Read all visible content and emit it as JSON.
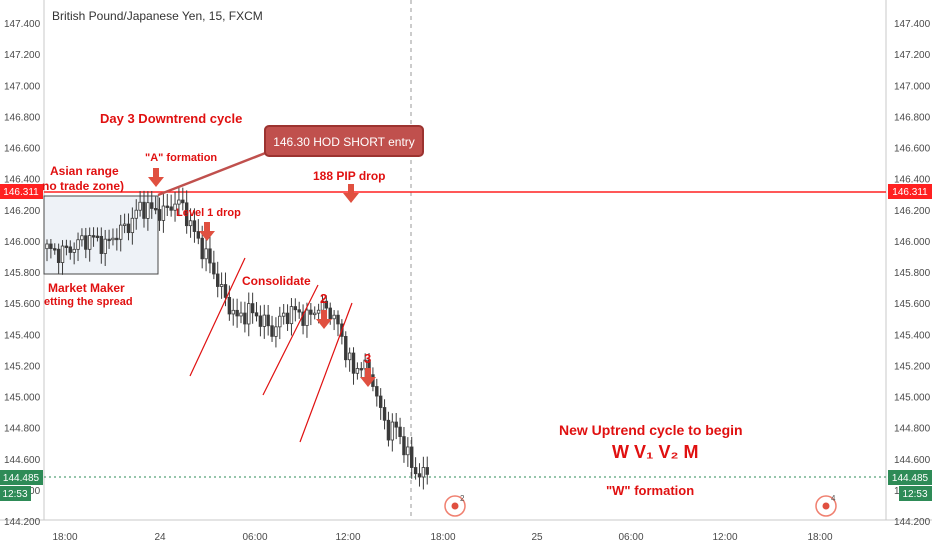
{
  "header": {
    "title": "British Pound/Japanese Yen, 15, FXCM"
  },
  "axes": {
    "price_ticks": [
      "147.400",
      "147.200",
      "147.000",
      "146.800",
      "146.600",
      "146.400",
      "146.200",
      "146.000",
      "145.800",
      "145.600",
      "145.400",
      "145.200",
      "145.000",
      "144.800",
      "144.600",
      "144.400",
      "144.200"
    ],
    "price_min": 144.2,
    "price_max": 147.4,
    "time_ticks": [
      "18:00",
      "24",
      "06:00",
      "12:00",
      "18:00",
      "25",
      "06:00",
      "12:00",
      "18:00"
    ]
  },
  "price_labels": {
    "hod_level": "146.311",
    "last_price": "144.485",
    "countdown": "12:53"
  },
  "annotations": {
    "day_cycle": "Day 3  Downtrend cycle",
    "entry_callout": "146.30 HOD SHORT entry",
    "a_formation": "\"A\" formation",
    "asian_range_1": "Asian range",
    "asian_range_2": "no trade zone)",
    "pip_drop": "188 PIP drop",
    "level1": "Level 1 drop",
    "consolidate": "Consolidate",
    "mm_1": "Market Maker",
    "mm_2": "etting the spread",
    "num2": "2",
    "num3": "3",
    "uptrend": "New Uptrend cycle to begin",
    "wv": "W  V₁ V₂ M",
    "w_formation": "\"W\" formation"
  },
  "event_badges": [
    "2",
    "4"
  ],
  "colors": {
    "annotation": "#e01010",
    "hod_line": "#ff2020",
    "candle": "#3a3a3a",
    "arrow": "#e05040",
    "last_price_bg": "#2e8b57",
    "callout_bg": "#c0504d"
  },
  "chart_data": {
    "type": "candlestick",
    "title": "British Pound/Japanese Yen, 15, FXCM",
    "ylim": [
      144.2,
      147.4
    ],
    "hod": 146.311,
    "last": 144.485,
    "close_path": [
      [
        0,
        145.95
      ],
      [
        3,
        145.92
      ],
      [
        6,
        145.95
      ],
      [
        9,
        146.0
      ],
      [
        12,
        146.02
      ],
      [
        15,
        145.97
      ],
      [
        18,
        146.05
      ],
      [
        21,
        146.1
      ],
      [
        24,
        146.22
      ],
      [
        27,
        146.2
      ],
      [
        30,
        146.18
      ],
      [
        33,
        146.25
      ],
      [
        35,
        146.22
      ],
      [
        37,
        146.1
      ],
      [
        40,
        145.95
      ],
      [
        43,
        145.8
      ],
      [
        46,
        145.62
      ],
      [
        49,
        145.5
      ],
      [
        52,
        145.55
      ],
      [
        55,
        145.5
      ],
      [
        58,
        145.42
      ],
      [
        61,
        145.52
      ],
      [
        64,
        145.55
      ],
      [
        67,
        145.5
      ],
      [
        70,
        145.58
      ],
      [
        73,
        145.55
      ],
      [
        75,
        145.45
      ],
      [
        77,
        145.3
      ],
      [
        79,
        145.15
      ],
      [
        81,
        145.22
      ],
      [
        84,
        145.1
      ],
      [
        86,
        144.9
      ],
      [
        88,
        144.78
      ],
      [
        90,
        144.8
      ],
      [
        92,
        144.68
      ],
      [
        94,
        144.55
      ],
      [
        96,
        144.5
      ],
      [
        98,
        144.5
      ]
    ]
  }
}
